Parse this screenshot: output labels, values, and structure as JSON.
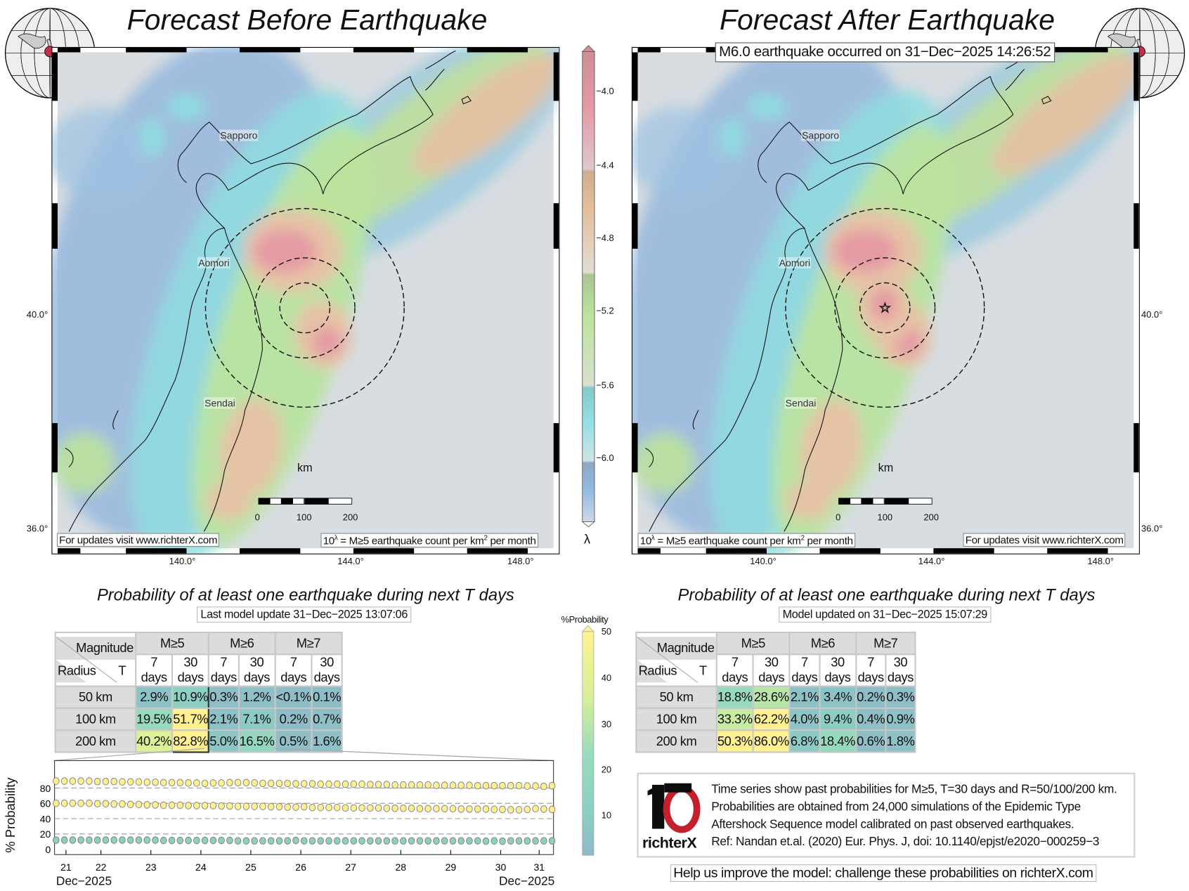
{
  "left_panel": {
    "title": "Forecast Before Earthquake",
    "caption_left": "For updates visit www.richterX.com",
    "caption_right_prefix": "10",
    "caption_right_sup": "λ",
    "caption_right_text": " = M≥5 earthquake count per km",
    "caption_right_sup2": "2",
    "caption_right_suffix": " per month",
    "cities": [
      "Sapporo",
      "Aomori",
      "Sendai"
    ],
    "scale_unit": "km",
    "scale_labels": [
      "0",
      "100",
      "200"
    ],
    "lat_ticks": [
      "40.0°",
      "36.0°"
    ],
    "lon_ticks": [
      "140.0°",
      "144.0°",
      "148.0°"
    ]
  },
  "right_panel": {
    "title": "Forecast After Earthquake",
    "event_banner": "M6.0 earthquake occurred on 31−Dec−2025 14:26:52",
    "caption_right": "For updates visit www.richterX.com",
    "caption_left_prefix": "10",
    "caption_left_sup": "λ",
    "caption_left_text": " = M≥5 earthquake count per km",
    "caption_left_sup2": "2",
    "caption_left_suffix": " per month",
    "cities": [
      "Sapporo",
      "Aomori",
      "Sendai"
    ],
    "scale_unit": "km",
    "scale_labels": [
      "0",
      "100",
      "200"
    ],
    "lat_ticks": [
      "40.0°",
      "36.0°"
    ],
    "lon_ticks": [
      "140.0°",
      "144.0°",
      "148.0°"
    ],
    "epicenter_icon": "star-icon"
  },
  "rate_colorbar": {
    "label": "λ",
    "ticks": [
      "−4.0",
      "−4.4",
      "−4.8",
      "−5.2",
      "−5.6",
      "−6.0"
    ]
  },
  "prob_colorbar": {
    "label": "%Probability",
    "ticks": [
      "50",
      "40",
      "30",
      "20",
      "10"
    ]
  },
  "tables": [
    {
      "subtitle": "Probability of at least one earthquake during next T days",
      "update": "Last model update 31−Dec−2025 13:07:06",
      "corner_top": "Magnitude",
      "corner_bottom_left": "Radius",
      "corner_bottom_right": "T",
      "magnitudes": [
        "M≥5",
        "M≥6",
        "M≥7"
      ],
      "periods": [
        "7 days",
        "30 days",
        "7 days",
        "30 days",
        "7 days",
        "30 days"
      ],
      "rows": [
        {
          "radius": "50 km",
          "cells": [
            "2.9%",
            "10.9%",
            "0.3%",
            "1.2%",
            "<0.1%",
            "0.1%"
          ]
        },
        {
          "radius": "100 km",
          "cells": [
            "19.5%",
            "51.7%",
            "2.1%",
            "7.1%",
            "0.2%",
            "0.7%"
          ]
        },
        {
          "radius": "200 km",
          "cells": [
            "40.2%",
            "82.8%",
            "5.0%",
            "16.5%",
            "0.5%",
            "1.6%"
          ]
        }
      ]
    },
    {
      "subtitle": "Probability of at least one earthquake during next T days",
      "update": "Model updated on 31−Dec−2025 15:07:29",
      "corner_top": "Magnitude",
      "corner_bottom_left": "Radius",
      "corner_bottom_right": "T",
      "magnitudes": [
        "M≥5",
        "M≥6",
        "M≥7"
      ],
      "periods": [
        "7 days",
        "30 days",
        "7 days",
        "30 days",
        "7 days",
        "30 days"
      ],
      "rows": [
        {
          "radius": "50 km",
          "cells": [
            "18.8%",
            "28.6%",
            "2.1%",
            "3.4%",
            "0.2%",
            "0.3%"
          ]
        },
        {
          "radius": "100 km",
          "cells": [
            "33.3%",
            "62.2%",
            "4.0%",
            "9.4%",
            "0.4%",
            "0.9%"
          ]
        },
        {
          "radius": "200 km",
          "cells": [
            "50.3%",
            "86.0%",
            "6.8%",
            "18.4%",
            "0.6%",
            "1.8%"
          ]
        }
      ]
    }
  ],
  "chart_data": {
    "type": "scatter",
    "ylabel": "% Probability",
    "xlabel_left": "Dec−2025",
    "xlabel_right": "Dec−2025",
    "x_tick_labels": [
      "21",
      "22",
      "23",
      "24",
      "25",
      "26",
      "27",
      "28",
      "29",
      "30",
      "31"
    ],
    "y_tick_labels": [
      "0",
      "20",
      "40",
      "60",
      "80"
    ],
    "ylim": [
      -8,
      100
    ],
    "grid": "dashed horizontal at 20/40/60/80",
    "series": [
      {
        "color": "#fff08f",
        "values": [
          89,
          89,
          89,
          89,
          89,
          88.5,
          88.5,
          88.5,
          88,
          88,
          88,
          87.5,
          87.5,
          87,
          87,
          87,
          86.5,
          86.5,
          86,
          86.5,
          86.5,
          87,
          87,
          87,
          86.5,
          86,
          86,
          86,
          86,
          85.5,
          85.5,
          85.5,
          85,
          85,
          85,
          85,
          85,
          85,
          84.5,
          84.5,
          84.5,
          84,
          84,
          84,
          84,
          84,
          83.5,
          83.5,
          83.5,
          83.5,
          83.5,
          83,
          83,
          83,
          83,
          83,
          83,
          82.5,
          82.5,
          82,
          83
        ]
      },
      {
        "color": "#fff08f",
        "values": [
          60,
          60,
          60,
          60,
          60,
          59.5,
          59.5,
          59,
          59,
          58.5,
          58.5,
          58,
          58,
          57.5,
          57.5,
          57.5,
          57,
          57,
          57,
          57,
          56.5,
          56.5,
          56,
          56,
          56,
          56,
          55.5,
          55.5,
          55,
          55,
          55.5,
          54.5,
          54.5,
          54.5,
          54.5,
          54,
          54,
          54,
          54,
          54,
          53.5,
          53.5,
          53.5,
          53.5,
          53,
          53,
          53,
          53,
          53,
          52.5,
          52.5,
          52.5,
          52.5,
          52,
          52,
          51.5,
          51.5,
          52,
          53,
          52.5,
          52
        ]
      },
      {
        "color": "#8fcfc0",
        "values": [
          12,
          12,
          12,
          12,
          12,
          12,
          12,
          12,
          12,
          12,
          12,
          12,
          12,
          11.5,
          11.5,
          11.5,
          11.5,
          11.5,
          11.5,
          11.5,
          11.5,
          11.5,
          11,
          11,
          11,
          11,
          11,
          11,
          11,
          11.5,
          11,
          11,
          11,
          11,
          11,
          11,
          11,
          11,
          11,
          11,
          11,
          11,
          11,
          11,
          11,
          11,
          11,
          11,
          11,
          11,
          11,
          11,
          10.5,
          11,
          10.5,
          11,
          11,
          11,
          11,
          11,
          11
        ]
      }
    ]
  },
  "info": {
    "logo_text": "richterX",
    "lines": [
      "Time series show past probabilities for M≥5, T=30 days and R=50/100/200 km.",
      "Probabilities are obtained from 24,000 simulations of the Epidemic Type",
      "Aftershock Sequence model calibrated on past observed earthquakes.",
      "Ref: Nandan et.al. (2020) Eur. Phys. J, doi: 10.1140/epjst/e2020−000259−3"
    ],
    "help": "Help us improve the model: challenge these probabilities on richterX.com"
  }
}
